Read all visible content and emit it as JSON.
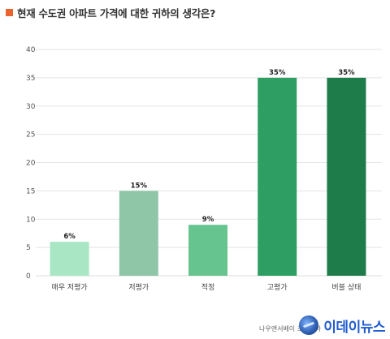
{
  "title": "현재 수도권 아파트 가격에 대한 귀하의 생각은?",
  "colors": {
    "title_marker": "#e8642c",
    "gridline": "#e3e3e3",
    "bars": [
      "#a8e6c4",
      "#8fc6a8",
      "#66c48f",
      "#2e9e62",
      "#1e7c4a"
    ]
  },
  "chart_data": {
    "type": "bar",
    "categories": [
      "매우 저평가",
      "저평가",
      "적정",
      "고평가",
      "버블 상태"
    ],
    "values": [
      6,
      15,
      9,
      35,
      35
    ],
    "data_labels": [
      "6%",
      "15%",
      "9%",
      "35%",
      "35%"
    ],
    "yticks": [
      "0",
      "5",
      "10",
      "15",
      "20",
      "25",
      "30",
      "35",
      "40"
    ],
    "ylim": [
      0,
      40
    ],
    "grid": true,
    "legend": "none"
  },
  "footer": {
    "source": "나우앤서베이 조사결과"
  },
  "watermark": {
    "text": "이데이뉴스",
    "logo_icon": "globe-icon"
  }
}
